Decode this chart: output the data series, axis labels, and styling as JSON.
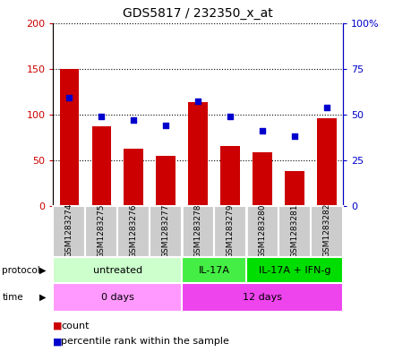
{
  "title": "GDS5817 / 232350_x_at",
  "samples": [
    "GSM1283274",
    "GSM1283275",
    "GSM1283276",
    "GSM1283277",
    "GSM1283278",
    "GSM1283279",
    "GSM1283280",
    "GSM1283281",
    "GSM1283282"
  ],
  "counts": [
    150,
    87,
    63,
    55,
    113,
    65,
    59,
    38,
    96
  ],
  "percentile_ranks": [
    59,
    49,
    47,
    44,
    57,
    49,
    41,
    38,
    54
  ],
  "ylim_left": [
    0,
    200
  ],
  "ylim_right": [
    0,
    100
  ],
  "yticks_left": [
    0,
    50,
    100,
    150,
    200
  ],
  "yticks_right": [
    0,
    25,
    50,
    75,
    100
  ],
  "ytick_labels_left": [
    "0",
    "50",
    "100",
    "150",
    "200"
  ],
  "ytick_labels_right": [
    "0",
    "25",
    "50",
    "75",
    "100%"
  ],
  "bar_color": "#cc0000",
  "dot_color": "#0000cc",
  "protocol_groups": [
    {
      "label": "untreated",
      "start": 0,
      "end": 4,
      "color": "#ccffcc"
    },
    {
      "label": "IL-17A",
      "start": 4,
      "end": 6,
      "color": "#44ee44"
    },
    {
      "label": "IL-17A + IFN-g",
      "start": 6,
      "end": 9,
      "color": "#00dd00"
    }
  ],
  "time_groups": [
    {
      "label": "0 days",
      "start": 0,
      "end": 4,
      "color": "#ff99ff"
    },
    {
      "label": "12 days",
      "start": 4,
      "end": 9,
      "color": "#ee44ee"
    }
  ],
  "sample_bg_color": "#cccccc",
  "grid_color": "#000000"
}
